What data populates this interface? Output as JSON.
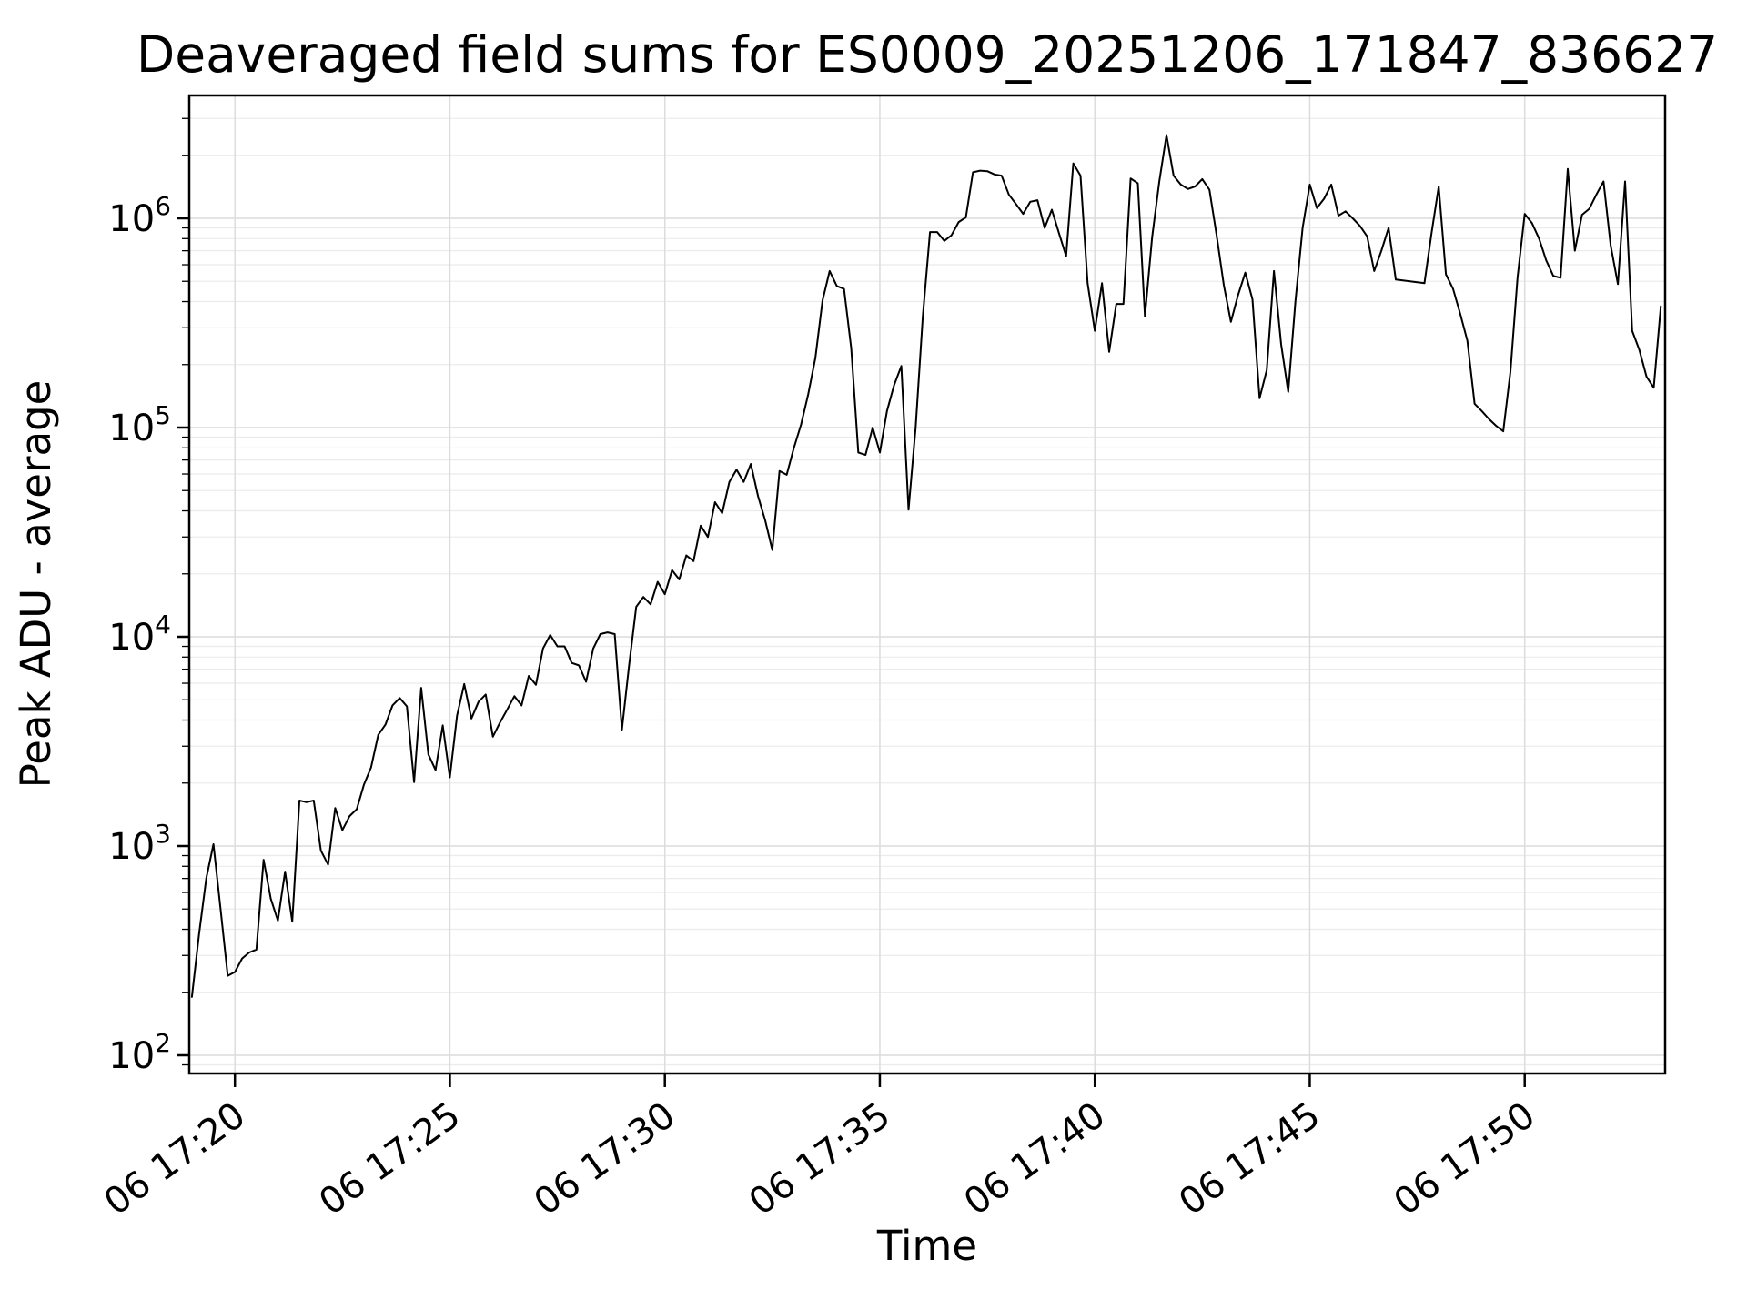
{
  "title": "Deaveraged field sums for ES0009_20251206_171847_836627",
  "x_axis": {
    "label": "Time",
    "tick_labels": [
      "06 17:20",
      "06 17:25",
      "06 17:30",
      "06 17:35",
      "06 17:40",
      "06 17:45",
      "06 17:50"
    ],
    "tick_seconds": [
      1200,
      1500,
      1800,
      2100,
      2400,
      2700,
      3000
    ]
  },
  "y_axis": {
    "label": "Peak ADU - average",
    "scale": "log",
    "tick_exponents": [
      2,
      3,
      4,
      5,
      6
    ]
  },
  "colors": {
    "line": "#000000",
    "spine": "#000000",
    "grid_major": "#dcdcdc",
    "grid_minor": "#ebebeb",
    "background": "#ffffff"
  },
  "chart_data": {
    "type": "line",
    "title": "Deaveraged field sums for ES0009_20251206_171847_836627",
    "xlabel": "Time",
    "ylabel": "Peak ADU - average",
    "legend": null,
    "grid": true,
    "x_start_time": "17:19:00",
    "x_step_seconds": 10,
    "x_tick_labels": [
      "06 17:20",
      "06 17:25",
      "06 17:30",
      "06 17:35",
      "06 17:40",
      "06 17:45",
      "06 17:50"
    ],
    "ylim": [
      82,
      3860000
    ],
    "values": [
      190,
      380,
      700,
      1020,
      500,
      240,
      250,
      290,
      310,
      320,
      860,
      560,
      440,
      755,
      435,
      1650,
      1620,
      1650,
      950,
      815,
      1520,
      1190,
      1390,
      1500,
      1960,
      2375,
      3400,
      3800,
      4700,
      5100,
      4650,
      2020,
      5700,
      2740,
      2310,
      3770,
      2130,
      4200,
      5950,
      4070,
      4900,
      5300,
      3330,
      3900,
      4500,
      5200,
      4700,
      6500,
      5900,
      8800,
      10200,
      9000,
      9000,
      7500,
      7300,
      6100,
      8800,
      10300,
      10500,
      10300,
      3600,
      7250,
      13900,
      15500,
      14300,
      18300,
      16000,
      20800,
      18800,
      24500,
      23000,
      34000,
      30000,
      44000,
      39000,
      55000,
      63000,
      55000,
      67000,
      47000,
      36000,
      26000,
      62000,
      59500,
      80000,
      103000,
      144000,
      215000,
      405000,
      560000,
      475000,
      460000,
      240000,
      76000,
      74000,
      100000,
      76000,
      120000,
      160000,
      197000,
      40500,
      100000,
      340000,
      860000,
      860000,
      780000,
      830000,
      960000,
      1010000,
      1660000,
      1690000,
      1680000,
      1620000,
      1600000,
      1300000,
      1170000,
      1050000,
      1200000,
      1220000,
      900000,
      1100000,
      850000,
      660000,
      1830000,
      1600000,
      490000,
      290000,
      490000,
      230000,
      390000,
      390000,
      1550000,
      1470000,
      340000,
      810000,
      1500000,
      2500000,
      1600000,
      1450000,
      1380000,
      1420000,
      1540000,
      1370000,
      830000,
      480000,
      320000,
      430000,
      550000,
      410000,
      138000,
      188000,
      560000,
      250000,
      148000,
      400000,
      900000,
      1450000,
      1120000,
      1240000,
      1450000,
      1030000,
      1080000,
      1000000,
      920000,
      820000,
      560000,
      700000,
      900000,
      510000,
      505000,
      500000,
      495000,
      490000,
      850000,
      1420000,
      540000,
      460000,
      350000,
      260000,
      130000,
      120000,
      110000,
      102000,
      96000,
      185000,
      520000,
      1050000,
      950000,
      800000,
      630000,
      530000,
      520000,
      1720000,
      700000,
      1040000,
      1110000,
      1300000,
      1500000,
      740000,
      485000,
      1500000,
      290000,
      235000,
      175000,
      155000,
      380000
    ]
  }
}
